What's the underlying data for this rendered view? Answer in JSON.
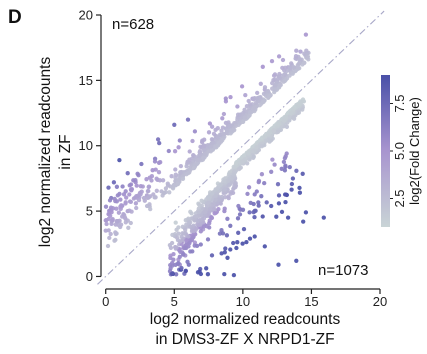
{
  "panel_label": "D",
  "chart_data": {
    "type": "scatter",
    "xlabel_line1": "log2 normalized readcounts",
    "xlabel_line2": "in DMS3-ZF X NRPD1-ZF",
    "ylabel_line1": "log2 normalized readcounts",
    "ylabel_line2": "in ZF",
    "xlim": [
      -1,
      20
    ],
    "ylim": [
      -0.5,
      20
    ],
    "xticks": [
      0,
      5,
      10,
      15,
      20
    ],
    "yticks": [
      0,
      5,
      10,
      15,
      20
    ],
    "diagonal": "y = x (dash-dot)",
    "annotations": {
      "upper_count": "n=628",
      "lower_count": "n=1073"
    },
    "colorbar": {
      "label": "log2(Fold Change)",
      "range": [
        1,
        9
      ],
      "ticks": [
        2.5,
        5.0,
        7.5
      ],
      "colors": {
        "low": "#c9d4d6",
        "mid": "#a895cf",
        "high": "#4a50a8"
      }
    },
    "series": [
      {
        "group": "up-in-ZF",
        "count": 628,
        "points_sample": [
          [
            14.6,
            18.5
          ],
          [
            14.2,
            17.2
          ],
          [
            13.3,
            16.0
          ],
          [
            12.6,
            15.3
          ],
          [
            11.6,
            14.3
          ],
          [
            10.7,
            13.6
          ],
          [
            9.6,
            13.0
          ],
          [
            8.5,
            12.1
          ],
          [
            7.6,
            11.7
          ],
          [
            6.5,
            11.1
          ],
          [
            5.4,
            10.4
          ],
          [
            4.6,
            9.6
          ],
          [
            3.6,
            9.0
          ],
          [
            2.6,
            8.6
          ],
          [
            1.6,
            7.9
          ],
          [
            0.6,
            7.2
          ],
          [
            0.2,
            6.8
          ],
          [
            0.4,
            6.0
          ],
          [
            1.2,
            5.4
          ],
          [
            1.6,
            5.0
          ],
          [
            2.2,
            5.6
          ],
          [
            3.0,
            6.2
          ],
          [
            5.0,
            11.6
          ],
          [
            6.0,
            12.0
          ],
          [
            3.9,
            10.2
          ],
          [
            1.0,
            8.9
          ]
        ]
      },
      {
        "group": "down-in-ZF",
        "count": 1073,
        "points_sample": [
          [
            13.9,
            13.1
          ],
          [
            13.3,
            12.5
          ],
          [
            12.6,
            11.8
          ],
          [
            11.7,
            10.9
          ],
          [
            11.1,
            10.1
          ],
          [
            10.2,
            9.2
          ],
          [
            9.6,
            8.4
          ],
          [
            9.1,
            7.5
          ],
          [
            8.6,
            6.4
          ],
          [
            8.1,
            5.5
          ],
          [
            7.6,
            4.6
          ],
          [
            7.1,
            3.6
          ],
          [
            6.5,
            2.6
          ],
          [
            5.8,
            1.6
          ],
          [
            5.4,
            0.9
          ],
          [
            4.9,
            0.2
          ],
          [
            5.3,
            1.3
          ],
          [
            11.6,
            2.3
          ],
          [
            12.6,
            0.9
          ],
          [
            13.9,
            1.2
          ],
          [
            14.4,
            4.2
          ],
          [
            14.6,
            4.9
          ],
          [
            13.3,
            4.5
          ],
          [
            15.9,
            4.5
          ]
        ]
      }
    ]
  }
}
